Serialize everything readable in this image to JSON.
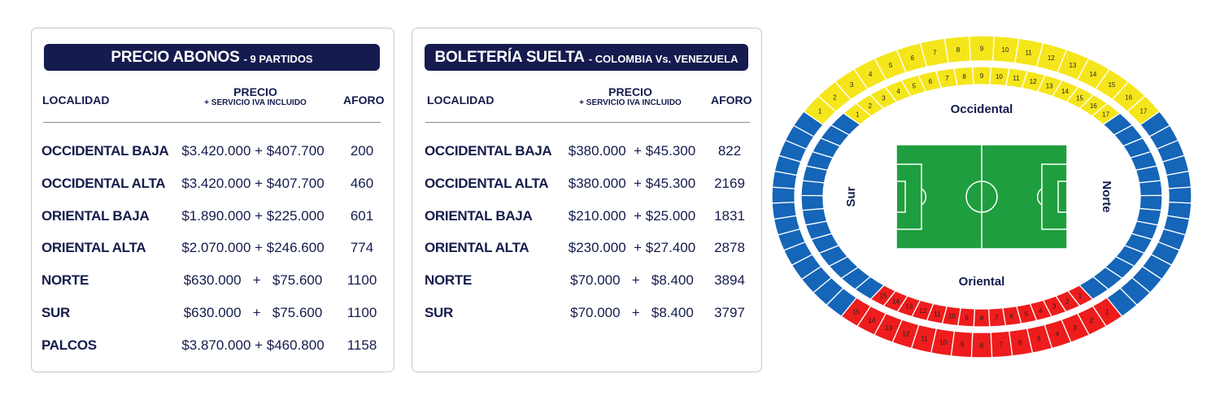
{
  "abonos": {
    "title": "PRECIO ABONOS",
    "subtitle": "- 9 PARTIDOS",
    "headers": {
      "localidad": "LOCALIDAD",
      "precio": "PRECIO",
      "precio_sub": "+ SERVICIO IVA INCLUIDO",
      "aforo": "AFORO"
    },
    "rows": [
      {
        "localidad": "OCCIDENTAL BAJA",
        "precio": "$3.420.000 + $407.700",
        "aforo": "200"
      },
      {
        "localidad": "OCCIDENTAL ALTA",
        "precio": "$3.420.000 + $407.700",
        "aforo": "460"
      },
      {
        "localidad": "ORIENTAL BAJA",
        "precio": "$1.890.000 + $225.000",
        "aforo": "601"
      },
      {
        "localidad": "ORIENTAL ALTA",
        "precio": "$2.070.000 + $246.600",
        "aforo": "774"
      },
      {
        "localidad": "NORTE",
        "precio": "$630.000   +   $75.600",
        "aforo": "1100"
      },
      {
        "localidad": "SUR",
        "precio": "$630.000   +   $75.600",
        "aforo": "1100"
      },
      {
        "localidad": "PALCOS",
        "precio": "$3.870.000 + $460.800",
        "aforo": "1158"
      }
    ]
  },
  "suelta": {
    "title": "BOLETERÍA SUELTA",
    "subtitle": "- COLOMBIA Vs. VENEZUELA",
    "headers": {
      "localidad": "LOCALIDAD",
      "precio": "PRECIO",
      "precio_sub": "+ SERVICIO IVA INCLUIDO",
      "aforo": "AFORO"
    },
    "rows": [
      {
        "localidad": "OCCIDENTAL BAJA",
        "precio": "$380.000  + $45.300",
        "aforo": "822"
      },
      {
        "localidad": "OCCIDENTAL ALTA",
        "precio": "$380.000  + $45.300",
        "aforo": "2169"
      },
      {
        "localidad": "ORIENTAL BAJA",
        "precio": "$210.000  + $25.000",
        "aforo": "1831"
      },
      {
        "localidad": "ORIENTAL ALTA",
        "precio": "$230.000  + $27.400",
        "aforo": "2878"
      },
      {
        "localidad": "NORTE",
        "precio": "$70.000   +   $8.400",
        "aforo": "3894"
      },
      {
        "localidad": "SUR",
        "precio": "$70.000   +   $8.400",
        "aforo": "3797"
      }
    ]
  },
  "stadium": {
    "labels": {
      "occidental": "Occidental",
      "oriental": "Oriental",
      "norte": "Norte",
      "sur": "Sur"
    },
    "colors": {
      "occidental": "#f5e61b",
      "oriental": "#ee1c1c",
      "sides": "#1565b8",
      "pitch": "#1f9e3f",
      "separator": "#ffffff"
    },
    "occidental_outer_numbers": [
      "1",
      "2",
      "3",
      "4",
      "5",
      "6",
      "7",
      "8",
      "9",
      "10",
      "11",
      "12",
      "13",
      "14",
      "15",
      "16",
      "17"
    ],
    "occidental_inner_numbers": [
      "1",
      "2",
      "3",
      "4",
      "5",
      "6",
      "7",
      "8",
      "9",
      "10",
      "11",
      "12",
      "13",
      "14",
      "15",
      "16",
      "17"
    ],
    "oriental_inner_numbers": [
      "15",
      "14",
      "13",
      "12",
      "11",
      "10",
      "9",
      "8",
      "7",
      "6",
      "5",
      "4",
      "3",
      "2",
      "1"
    ],
    "oriental_outer_numbers": [
      "15",
      "14",
      "13",
      "12",
      "11",
      "10",
      "9",
      "8",
      "7",
      "6",
      "5",
      "4",
      "3",
      "2",
      "1"
    ]
  }
}
